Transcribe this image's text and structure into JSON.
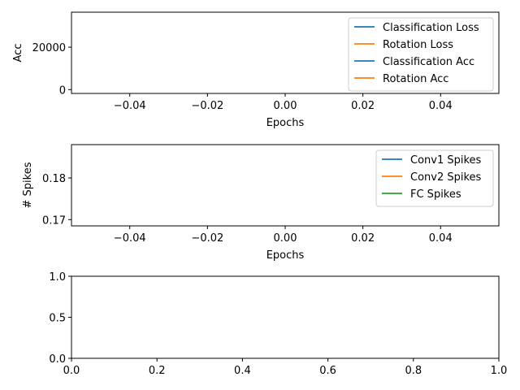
{
  "chart_data": [
    {
      "type": "line",
      "xlabel": "Epochs",
      "ylabel": "Acc",
      "xlim": [
        -0.055,
        0.055
      ],
      "ylim": [
        -1800,
        36500
      ],
      "xticks": [
        -0.04,
        -0.02,
        0.0,
        0.02,
        0.04
      ],
      "xtick_labels": [
        "−0.04",
        "−0.02",
        "0.00",
        "0.02",
        "0.04"
      ],
      "yticks": [
        0,
        20000
      ],
      "ytick_labels": [
        "0",
        "20000"
      ],
      "legend_position": "upper right",
      "series": [
        {
          "name": "Classification Loss",
          "color": "#1f77b4",
          "x": [],
          "y": []
        },
        {
          "name": "Rotation Loss",
          "color": "#ff7f0e",
          "x": [],
          "y": []
        },
        {
          "name": "Classification Acc",
          "color": "#1f77b4",
          "x": [],
          "y": []
        },
        {
          "name": "Rotation Acc",
          "color": "#ff7f0e",
          "x": [],
          "y": []
        }
      ]
    },
    {
      "type": "line",
      "xlabel": "Epochs",
      "ylabel": "# Spikes",
      "xlim": [
        -0.055,
        0.055
      ],
      "ylim": [
        0.1685,
        0.188
      ],
      "xticks": [
        -0.04,
        -0.02,
        0.0,
        0.02,
        0.04
      ],
      "xtick_labels": [
        "−0.04",
        "−0.02",
        "0.00",
        "0.02",
        "0.04"
      ],
      "yticks": [
        0.17,
        0.18
      ],
      "ytick_labels": [
        "0.17",
        "0.18"
      ],
      "legend_position": "upper right",
      "series": [
        {
          "name": "Conv1 Spikes",
          "color": "#1f77b4",
          "x": [],
          "y": []
        },
        {
          "name": "Conv2 Spikes",
          "color": "#ff7f0e",
          "x": [],
          "y": []
        },
        {
          "name": "FC Spikes",
          "color": "#2ca02c",
          "x": [],
          "y": []
        }
      ]
    },
    {
      "type": "line",
      "xlabel": "",
      "ylabel": "",
      "xlim": [
        0.0,
        1.0
      ],
      "ylim": [
        0.0,
        1.0
      ],
      "xticks": [
        0.0,
        0.2,
        0.4,
        0.6,
        0.8,
        1.0
      ],
      "xtick_labels": [
        "0.0",
        "0.2",
        "0.4",
        "0.6",
        "0.8",
        "1.0"
      ],
      "yticks": [
        0.0,
        0.5,
        1.0
      ],
      "ytick_labels": [
        "0.0",
        "0.5",
        "1.0"
      ],
      "legend_position": "none",
      "series": []
    }
  ]
}
